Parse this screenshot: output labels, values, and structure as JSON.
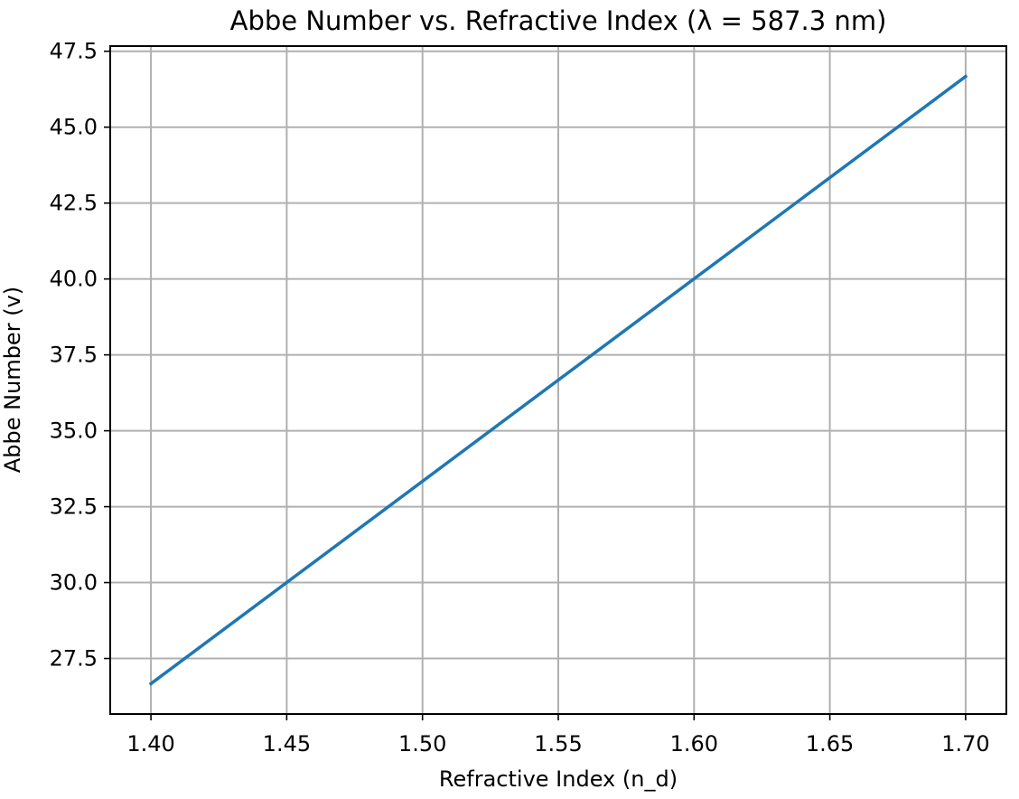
{
  "chart_data": {
    "type": "line",
    "title": "Abbe Number vs. Refractive Index (λ = 587.3 nm)",
    "xlabel": "Refractive Index (n_d)",
    "ylabel": "Abbe Number (v)",
    "xlim": [
      1.385,
      1.715
    ],
    "ylim": [
      25.67,
      47.67
    ],
    "xticks": [
      1.4,
      1.45,
      1.5,
      1.55,
      1.6,
      1.65,
      1.7
    ],
    "xtick_labels": [
      "1.40",
      "1.45",
      "1.50",
      "1.55",
      "1.60",
      "1.65",
      "1.70"
    ],
    "yticks": [
      27.5,
      30.0,
      32.5,
      35.0,
      37.5,
      40.0,
      42.5,
      45.0,
      47.5
    ],
    "ytick_labels": [
      "27.5",
      "30.0",
      "32.5",
      "35.0",
      "37.5",
      "40.0",
      "42.5",
      "45.0",
      "47.5"
    ],
    "grid": true,
    "x": [
      1.4,
      1.7
    ],
    "series": [
      {
        "values": [
          26.67,
          46.67
        ],
        "color": "#1f77b4"
      }
    ]
  }
}
